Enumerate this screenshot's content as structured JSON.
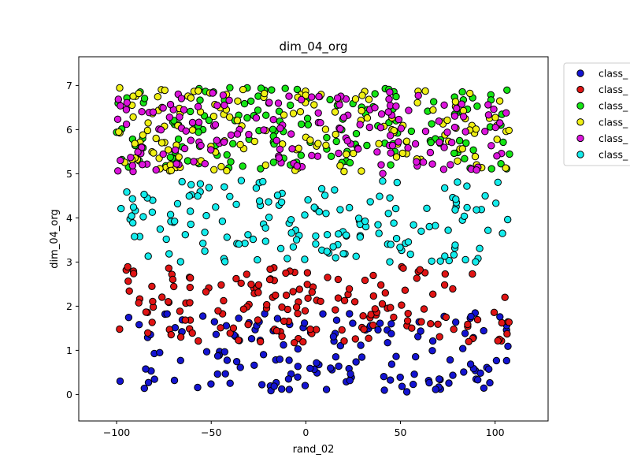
{
  "chart_data": {
    "type": "scatter",
    "title": "dim_04_org",
    "xlabel": "rand_02",
    "ylabel": "dim_04_org",
    "xlim": [
      -120,
      128
    ],
    "ylim": [
      -0.6,
      7.65
    ],
    "xticks": [
      -100,
      -50,
      0,
      50,
      100
    ],
    "yticks": [
      0,
      1,
      2,
      3,
      4,
      5,
      6,
      7
    ],
    "legend_position": "outside-top-right",
    "grid": false,
    "series": [
      {
        "name": "class_",
        "color": "#1414d2",
        "x_range": [
          -100,
          108
        ],
        "y_range": [
          0.05,
          1.85
        ],
        "points_approx": 160
      },
      {
        "name": "class_",
        "color": "#e01414",
        "x_range": [
          -100,
          108
        ],
        "y_range": [
          1.15,
          2.9
        ],
        "points_approx": 170
      },
      {
        "name": "class_",
        "color": "#14e614",
        "x_range": [
          -100,
          108
        ],
        "y_range": [
          5.1,
          6.95
        ],
        "points_approx": 160
      },
      {
        "name": "class_",
        "color": "#f0f014",
        "x_range": [
          -100,
          108
        ],
        "y_range": [
          5.05,
          6.95
        ],
        "points_approx": 160
      },
      {
        "name": "class_",
        "color": "#dc14dc",
        "x_range": [
          -100,
          108
        ],
        "y_range": [
          5.0,
          6.85
        ],
        "points_approx": 160
      },
      {
        "name": "class_",
        "color": "#14ecec",
        "x_range": [
          -100,
          108
        ],
        "y_range": [
          3.0,
          4.85
        ],
        "points_approx": 170
      }
    ]
  }
}
